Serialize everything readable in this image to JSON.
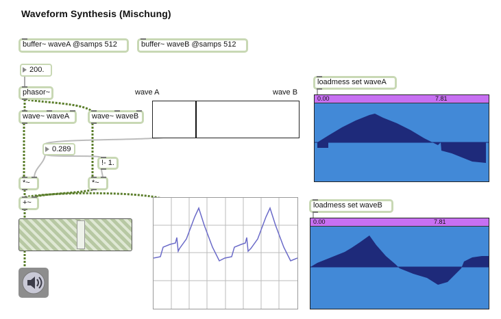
{
  "title": "Waveform Synthesis (Mischung)",
  "objects": {
    "buffer_a": "buffer~ waveA @samps 512",
    "buffer_b": "buffer~ waveB @samps 512",
    "phasor": "phasor~",
    "wave_a": "wave~ waveA",
    "wave_b": "wave~ waveB",
    "minus_one": "!- 1.",
    "mul_a": "*~",
    "mul_b": "*~",
    "add": "+~",
    "loadmess_a": "loadmess set waveA",
    "loadmess_b": "loadmess set waveB"
  },
  "number_boxes": {
    "freq": "200.",
    "mix": "0.289"
  },
  "labels": {
    "wave_a": "wave A",
    "wave_b": "wave B"
  },
  "slider": {
    "mix_value": 0.289
  },
  "buffer_displays": {
    "a": {
      "start": "0.00",
      "end": "7.81"
    },
    "b": {
      "start": "0.00",
      "end": "7.81"
    }
  },
  "gain": {
    "level": 0.4
  },
  "icons": {
    "dac": "speaker-icon"
  },
  "colors": {
    "patch_cord": "#b7c8a3",
    "signal_cord": "#5a7d2a",
    "waveform_bg": "#4289d7",
    "waveform_fill": "#1e2a7a",
    "ruler": "#c770f2",
    "scope_line": "#6a6ac8"
  }
}
